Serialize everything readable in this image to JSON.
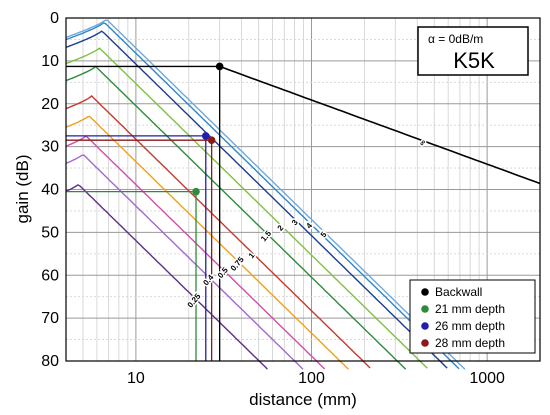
{
  "chart_data": {
    "type": "line",
    "xlabel": "distance (mm)",
    "ylabel": "gain (dB)",
    "xscale": "log",
    "xlim": [
      4,
      2000
    ],
    "ylim": [
      80,
      0
    ],
    "y_inverted": true,
    "grid": true,
    "x_tick_labels": [
      "10",
      "100",
      "1000"
    ],
    "y_tick_labels": [
      "0",
      "10",
      "20",
      "30",
      "40",
      "50",
      "60",
      "70",
      "80"
    ],
    "info_box": {
      "attenuation": "α = 0dB/m",
      "probe": "K5K"
    },
    "dgs_curves": [
      {
        "label": "0.25",
        "color": "#5b2f86",
        "peak_x": 4.7,
        "peak_y": 38.8
      },
      {
        "label": "0.4",
        "color": "#a06ad0",
        "peak_x": 5.0,
        "peak_y": 31.8
      },
      {
        "label": "0.5",
        "color": "#d04fa8",
        "peak_x": 5.2,
        "peak_y": 27.5
      },
      {
        "label": "0.75",
        "color": "#f0a11a",
        "peak_x": 5.4,
        "peak_y": 22.8
      },
      {
        "label": "1",
        "color": "#c43a2e",
        "peak_x": 5.6,
        "peak_y": 18.2
      },
      {
        "label": "1.5",
        "color": "#2e8b3c",
        "peak_x": 5.9,
        "peak_y": 11.3
      },
      {
        "label": "2",
        "color": "#7dc142",
        "peak_x": 6.2,
        "peak_y": 7.0
      },
      {
        "label": "3",
        "color": "#1a3d8f",
        "peak_x": 6.4,
        "peak_y": 3.0
      },
      {
        "label": "4",
        "color": "#2f86c9",
        "peak_x": 6.6,
        "peak_y": 1.0
      },
      {
        "label": "5",
        "color": "#6fa8dc",
        "peak_x": 6.8,
        "peak_y": 0.3
      },
      {
        "label": "∞",
        "color": "#000000",
        "start_x": 30,
        "start_y": 11.3,
        "end_x": 2000,
        "end_y": 38.6
      }
    ],
    "series": [
      {
        "name": "Backwall",
        "color": "#000000",
        "x": 30,
        "y": 11.3
      },
      {
        "name": "21 mm depth",
        "color": "#2e8b3c",
        "x": 22,
        "y": 40.5
      },
      {
        "name": "26 mm depth",
        "color": "#1f1fa8",
        "x": 25,
        "y": 27.5
      },
      {
        "name": "28 mm depth",
        "color": "#8b1a1a",
        "x": 27,
        "y": 28.5
      }
    ],
    "legend_position": "bottom-right"
  }
}
